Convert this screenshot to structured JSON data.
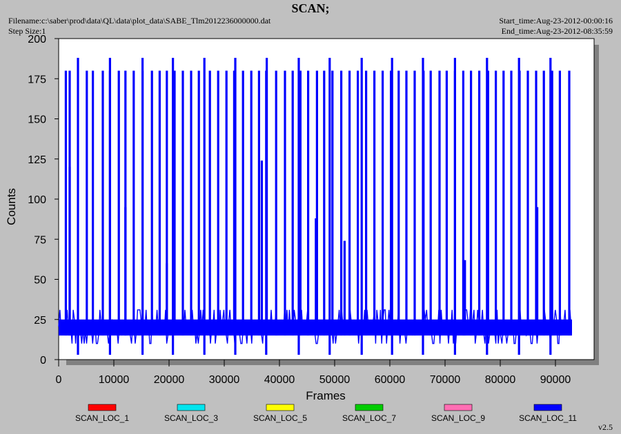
{
  "header": {
    "title": "SCAN;",
    "filename": "Filename:c:\\saber\\prod\\data\\QL\\data\\plot_data\\SABE_Tlm2012236000000.dat",
    "step_size": "Step Size:1",
    "start_time": "Start_time:Aug-23-2012-00:00:16",
    "end_time": "End_time:Aug-23-2012-08:35:59"
  },
  "version": "v2.5",
  "chart_data": {
    "type": "line",
    "title": "SCAN;",
    "xlabel": "Frames",
    "ylabel": "Counts",
    "xlim": [
      0,
      97000
    ],
    "ylim": [
      0,
      200
    ],
    "xticks": [
      0,
      10000,
      20000,
      30000,
      40000,
      50000,
      60000,
      70000,
      80000,
      90000
    ],
    "xtick_labels": [
      "0",
      "10000",
      "20000",
      "30000",
      "40000",
      "50000",
      "60000",
      "70000",
      "80000",
      "90000"
    ],
    "yticks": [
      0,
      25,
      50,
      75,
      100,
      125,
      150,
      175,
      200
    ],
    "ytick_labels": [
      "0",
      "25",
      "50",
      "75",
      "100",
      "125",
      "150",
      "175",
      "200"
    ],
    "grid": false,
    "legend_position": "bottom",
    "series": [
      {
        "name": "SCAN_LOC_1",
        "color": "#ff0000",
        "values": []
      },
      {
        "name": "SCAN_LOC_3",
        "color": "#00e5ee",
        "values": []
      },
      {
        "name": "SCAN_LOC_5",
        "color": "#ffff00",
        "values": []
      },
      {
        "name": "SCAN_LOC_7",
        "color": "#00cd00",
        "values": []
      },
      {
        "name": "SCAN_LOC_9",
        "color": "#ff6eb4",
        "values": []
      },
      {
        "name": "SCAN_LOC_11",
        "color": "#0000ff",
        "values": []
      }
    ],
    "scan_loc_11": {
      "x_end": 93000,
      "baseline_range": [
        15,
        25
      ],
      "frequent_spike_value": 31,
      "frequent_dip_value": 10,
      "peaks_180": [
        1300,
        2000,
        5100,
        6200,
        8000,
        9300,
        10900,
        12100,
        13600,
        15200,
        16900,
        18300,
        19600,
        21000,
        22500,
        24000,
        25400,
        27400,
        28900,
        30400,
        31800,
        33400,
        34900,
        36300,
        37600,
        39400,
        41000,
        42400,
        43800,
        45200,
        46800,
        48100,
        49600,
        51200,
        52700,
        54200,
        55700,
        57200,
        58700,
        60200,
        61600,
        63000,
        64500,
        66100,
        67400,
        69000,
        70300,
        71800,
        73300,
        74700,
        76200,
        77800,
        79200,
        80600,
        82000,
        83500,
        85000,
        86500,
        87900,
        89400,
        90800,
        92500
      ],
      "peaks_188": [
        3500,
        9300,
        15200,
        20700,
        26400,
        32000,
        37700,
        43500,
        49100,
        54900,
        60400,
        66000,
        71800,
        77600,
        83400,
        89100
      ],
      "dips_3": [
        3500,
        9300,
        15200,
        20700,
        26400,
        32000,
        37600,
        43500,
        49100,
        54900,
        60400,
        66000,
        71800,
        77600,
        83400,
        89100
      ],
      "partial_peaks": [
        [
          2000,
          120
        ],
        [
          12100,
          95
        ],
        [
          19600,
          60
        ],
        [
          36800,
          124
        ],
        [
          46600,
          88
        ],
        [
          51800,
          74
        ],
        [
          73600,
          62
        ],
        [
          86700,
          95
        ],
        [
          91000,
          20
        ]
      ]
    }
  }
}
